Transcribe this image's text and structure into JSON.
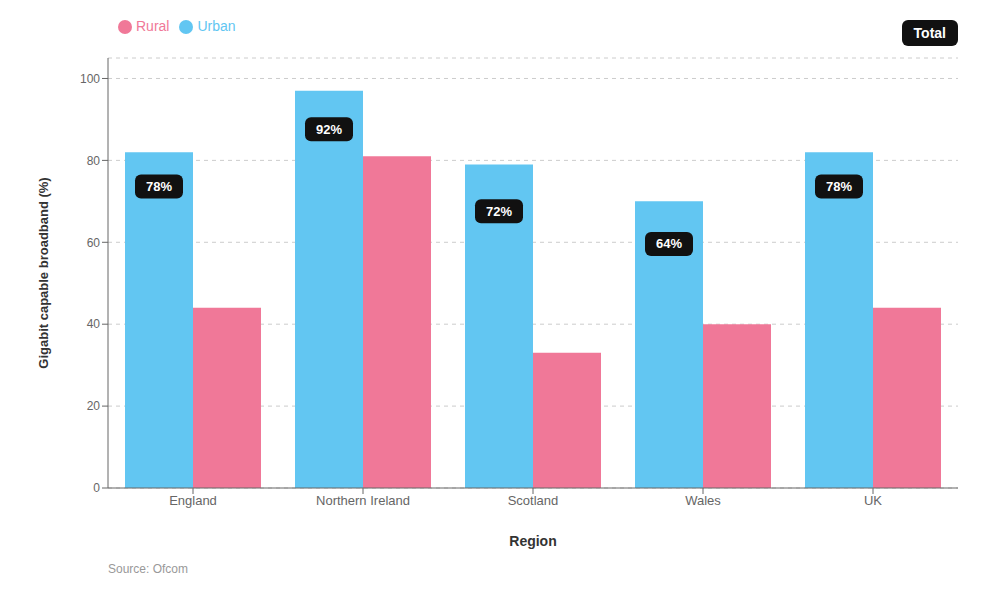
{
  "chart_data": {
    "type": "bar",
    "categories": [
      "England",
      "Northern Ireland",
      "Scotland",
      "Wales",
      "UK"
    ],
    "series": [
      {
        "name": "Urban",
        "color": "#62C6F2",
        "values": [
          82,
          97,
          79,
          70,
          82
        ]
      },
      {
        "name": "Rural",
        "color": "#F07898",
        "values": [
          44,
          81,
          33,
          40,
          44
        ]
      }
    ],
    "totals": {
      "name": "Total",
      "color": "#111111",
      "values": [
        78,
        92,
        72,
        64,
        78
      ],
      "value_labels": [
        "78%",
        "92%",
        "72%",
        "64%",
        "78%"
      ]
    },
    "xlabel": "Region",
    "ylabel": "Gigabit capable broadband (%)",
    "ylim": [
      0,
      105
    ],
    "yticks": [
      0,
      20,
      40,
      60,
      80,
      100
    ],
    "grid": true,
    "legend": "upper left",
    "source": "Source: Ofcom"
  }
}
